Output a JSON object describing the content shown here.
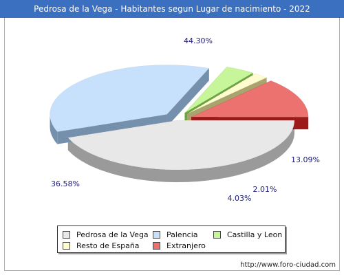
{
  "title": "Pedrosa de la Vega - Habitantes segun Lugar de nacimiento - 2022",
  "footer": "http://www.foro-ciudad.com",
  "chart_data": {
    "type": "pie",
    "title": "Pedrosa de la Vega - Habitantes segun Lugar de nacimiento - 2022",
    "legend_placement": "bottom",
    "slices": [
      {
        "name": "Pedrosa de la Vega",
        "value": 44.3,
        "label": "44.30%",
        "color": "#e8e8e8",
        "side": "#9a9a9a",
        "exploded": false
      },
      {
        "name": "Palencia",
        "value": 36.58,
        "label": "36.58%",
        "color": "#c7e0fb",
        "side": "#7590ad",
        "exploded": true
      },
      {
        "name": "Castilla y Leon",
        "value": 4.03,
        "label": "4.03%",
        "color": "#c6f59a",
        "side": "#6aa541",
        "exploded": true
      },
      {
        "name": "Resto de España",
        "value": 2.01,
        "label": "2.01%",
        "color": "#fffccf",
        "side": "#a9a36e",
        "exploded": true
      },
      {
        "name": "Extranjero",
        "value": 13.09,
        "label": "13.09%",
        "color": "#ec7270",
        "side": "#9c1a1a",
        "exploded": true
      }
    ]
  }
}
